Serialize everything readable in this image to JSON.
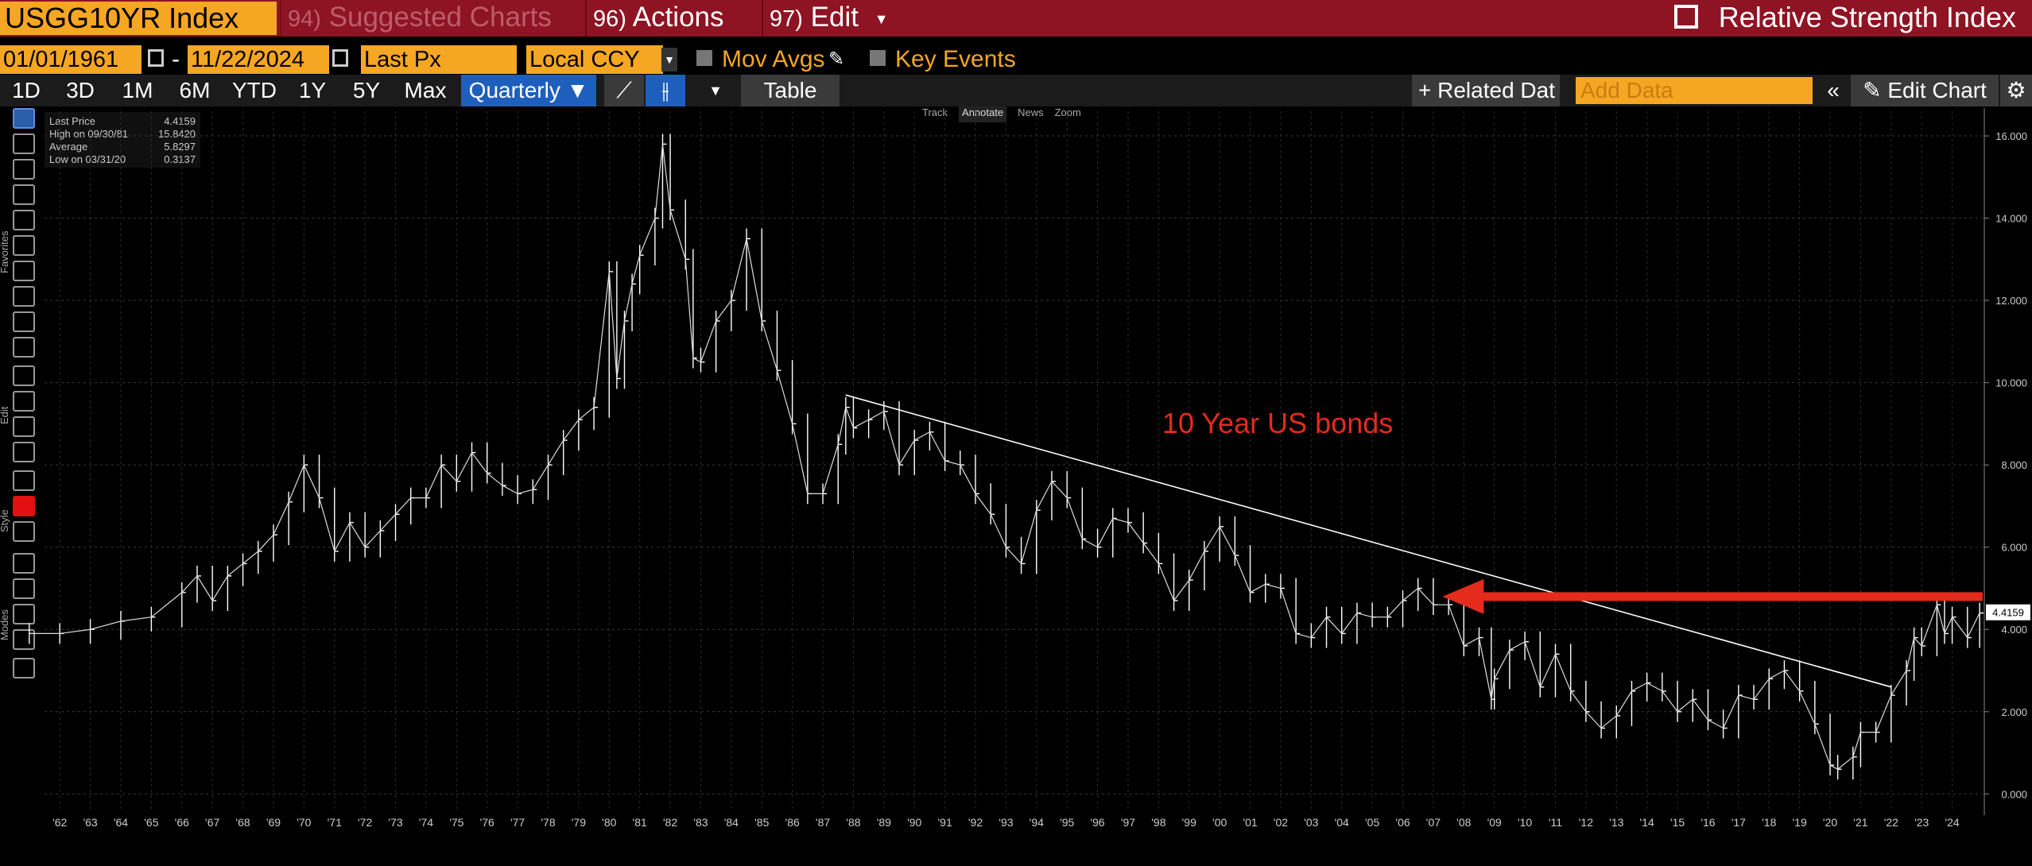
{
  "header": {
    "ticker": "USGG10YR Index",
    "menu_suggested_num": "94)",
    "menu_suggested": "Suggested Charts",
    "menu_actions_num": "96)",
    "menu_actions": "Actions",
    "menu_edit_num": "97)",
    "menu_edit": "Edit",
    "study": "Relative Strength Index"
  },
  "controls": {
    "start_date": "01/01/1961",
    "end_date": "11/22/2024",
    "field": "Last Px",
    "currency": "Local CCY",
    "mov_avgs": "Mov Avgs",
    "key_events": "Key Events"
  },
  "toolbar": {
    "periods": [
      "1D",
      "3D",
      "1M",
      "6M",
      "YTD",
      "1Y",
      "5Y",
      "Max"
    ],
    "frequency": "Quarterly",
    "table": "Table",
    "related_data": "Related Dat",
    "add_data_placeholder": "Add Data",
    "edit_chart": "Edit Chart"
  },
  "sidebar_labels": {
    "favorites": "Favorites",
    "edit": "Edit",
    "style": "Style",
    "modes": "Modes"
  },
  "legend": {
    "last_price_label": "Last Price",
    "last_price": "4.4159",
    "high_label": "High on 09/30/81",
    "high": "15.8420",
    "average_label": "Average",
    "average": "5.8297",
    "low_label": "Low on 03/31/20",
    "low": "0.3137"
  },
  "annotation_bar": {
    "track": "Track",
    "annotate": "Annotate",
    "news": "News",
    "zoom": "Zoom"
  },
  "colors": {
    "topbar": "#8e1423",
    "field": "#f5a623",
    "selected": "#1e5fbd",
    "arrow": "#e42b1c",
    "bars": "#ffffff"
  },
  "chart_data": {
    "type": "line",
    "bar_style": "ohlc",
    "frequency": "quarterly",
    "annotation": "10 Year US bonds",
    "last_value_label": "4.4159",
    "y_ticks": [
      "0.000",
      "2.000",
      "4.000",
      "6.000",
      "8.000",
      "10.000",
      "12.000",
      "14.000",
      "16.000"
    ],
    "ylim": [
      -0.4,
      16.6
    ],
    "x_ticks": [
      "'62",
      "'63",
      "'64",
      "'65",
      "'66",
      "'67",
      "'68",
      "'69",
      "'70",
      "'71",
      "'72",
      "'73",
      "'74",
      "'75",
      "'76",
      "'77",
      "'78",
      "'79",
      "'80",
      "'81",
      "'82",
      "'83",
      "'84",
      "'85",
      "'86",
      "'87",
      "'88",
      "'89",
      "'90",
      "'91",
      "'92",
      "'93",
      "'94",
      "'95",
      "'96",
      "'97",
      "'98",
      "'99",
      "'00",
      "'01",
      "'02",
      "'03",
      "'04",
      "'05",
      "'06",
      "'07",
      "'08",
      "'09",
      "'10",
      "'11",
      "'12",
      "'13",
      "'14",
      "'15",
      "'16",
      "'17",
      "'18",
      "'19",
      "'20",
      "'21",
      "'22",
      "'23",
      "'24"
    ],
    "xlim": [
      1961.5,
      2025.0
    ],
    "grid": true,
    "series": [
      {
        "values": [
          {
            "x": 1961.0,
            "y": 3.9
          },
          {
            "x": 1962.0,
            "y": 3.9
          },
          {
            "x": 1963.0,
            "y": 4.0
          },
          {
            "x": 1964.0,
            "y": 4.2
          },
          {
            "x": 1965.0,
            "y": 4.3
          },
          {
            "x": 1966.0,
            "y": 4.9
          },
          {
            "x": 1966.5,
            "y": 5.3
          },
          {
            "x": 1967.0,
            "y": 4.7
          },
          {
            "x": 1967.5,
            "y": 5.3
          },
          {
            "x": 1968.0,
            "y": 5.6
          },
          {
            "x": 1968.5,
            "y": 5.9
          },
          {
            "x": 1969.0,
            "y": 6.3
          },
          {
            "x": 1969.5,
            "y": 7.1
          },
          {
            "x": 1970.0,
            "y": 8.0
          },
          {
            "x": 1970.5,
            "y": 7.2
          },
          {
            "x": 1971.0,
            "y": 5.9
          },
          {
            "x": 1971.5,
            "y": 6.6
          },
          {
            "x": 1972.0,
            "y": 6.0
          },
          {
            "x": 1972.5,
            "y": 6.4
          },
          {
            "x": 1973.0,
            "y": 6.8
          },
          {
            "x": 1973.5,
            "y": 7.2
          },
          {
            "x": 1974.0,
            "y": 7.2
          },
          {
            "x": 1974.5,
            "y": 8.0
          },
          {
            "x": 1975.0,
            "y": 7.6
          },
          {
            "x": 1975.5,
            "y": 8.3
          },
          {
            "x": 1976.0,
            "y": 7.8
          },
          {
            "x": 1976.5,
            "y": 7.5
          },
          {
            "x": 1977.0,
            "y": 7.3
          },
          {
            "x": 1977.5,
            "y": 7.4
          },
          {
            "x": 1978.0,
            "y": 8.0
          },
          {
            "x": 1978.5,
            "y": 8.6
          },
          {
            "x": 1979.0,
            "y": 9.1
          },
          {
            "x": 1979.5,
            "y": 9.4
          },
          {
            "x": 1980.0,
            "y": 12.7
          },
          {
            "x": 1980.25,
            "y": 10.1
          },
          {
            "x": 1980.5,
            "y": 11.5
          },
          {
            "x": 1980.75,
            "y": 12.4
          },
          {
            "x": 1981.0,
            "y": 13.1
          },
          {
            "x": 1981.5,
            "y": 14.0
          },
          {
            "x": 1981.75,
            "y": 15.8
          },
          {
            "x": 1982.0,
            "y": 14.2
          },
          {
            "x": 1982.5,
            "y": 13.0
          },
          {
            "x": 1982.75,
            "y": 10.6
          },
          {
            "x": 1983.0,
            "y": 10.5
          },
          {
            "x": 1983.5,
            "y": 11.5
          },
          {
            "x": 1984.0,
            "y": 12.0
          },
          {
            "x": 1984.5,
            "y": 13.5
          },
          {
            "x": 1985.0,
            "y": 11.5
          },
          {
            "x": 1985.5,
            "y": 10.3
          },
          {
            "x": 1986.0,
            "y": 9.0
          },
          {
            "x": 1986.5,
            "y": 7.3
          },
          {
            "x": 1987.0,
            "y": 7.3
          },
          {
            "x": 1987.5,
            "y": 8.5
          },
          {
            "x": 1987.75,
            "y": 9.4
          },
          {
            "x": 1988.0,
            "y": 8.9
          },
          {
            "x": 1988.5,
            "y": 9.1
          },
          {
            "x": 1989.0,
            "y": 9.3
          },
          {
            "x": 1989.5,
            "y": 8.0
          },
          {
            "x": 1990.0,
            "y": 8.6
          },
          {
            "x": 1990.5,
            "y": 8.8
          },
          {
            "x": 1991.0,
            "y": 8.1
          },
          {
            "x": 1991.5,
            "y": 8.0
          },
          {
            "x": 1992.0,
            "y": 7.3
          },
          {
            "x": 1992.5,
            "y": 6.8
          },
          {
            "x": 1993.0,
            "y": 6.0
          },
          {
            "x": 1993.5,
            "y": 5.6
          },
          {
            "x": 1994.0,
            "y": 6.9
          },
          {
            "x": 1994.5,
            "y": 7.6
          },
          {
            "x": 1995.0,
            "y": 7.2
          },
          {
            "x": 1995.5,
            "y": 6.2
          },
          {
            "x": 1996.0,
            "y": 6.0
          },
          {
            "x": 1996.5,
            "y": 6.7
          },
          {
            "x": 1997.0,
            "y": 6.6
          },
          {
            "x": 1997.5,
            "y": 6.1
          },
          {
            "x": 1998.0,
            "y": 5.6
          },
          {
            "x": 1998.5,
            "y": 4.7
          },
          {
            "x": 1999.0,
            "y": 5.2
          },
          {
            "x": 1999.5,
            "y": 5.9
          },
          {
            "x": 2000.0,
            "y": 6.5
          },
          {
            "x": 2000.5,
            "y": 5.8
          },
          {
            "x": 2001.0,
            "y": 4.9
          },
          {
            "x": 2001.5,
            "y": 5.1
          },
          {
            "x": 2002.0,
            "y": 5.0
          },
          {
            "x": 2002.5,
            "y": 3.9
          },
          {
            "x": 2003.0,
            "y": 3.8
          },
          {
            "x": 2003.5,
            "y": 4.3
          },
          {
            "x": 2004.0,
            "y": 3.9
          },
          {
            "x": 2004.5,
            "y": 4.4
          },
          {
            "x": 2005.0,
            "y": 4.3
          },
          {
            "x": 2005.5,
            "y": 4.3
          },
          {
            "x": 2006.0,
            "y": 4.7
          },
          {
            "x": 2006.5,
            "y": 5.0
          },
          {
            "x": 2007.0,
            "y": 4.6
          },
          {
            "x": 2007.5,
            "y": 4.6
          },
          {
            "x": 2008.0,
            "y": 3.6
          },
          {
            "x": 2008.5,
            "y": 3.8
          },
          {
            "x": 2008.9,
            "y": 2.3
          },
          {
            "x": 2009.0,
            "y": 2.8
          },
          {
            "x": 2009.5,
            "y": 3.5
          },
          {
            "x": 2010.0,
            "y": 3.7
          },
          {
            "x": 2010.5,
            "y": 2.6
          },
          {
            "x": 2011.0,
            "y": 3.4
          },
          {
            "x": 2011.5,
            "y": 2.5
          },
          {
            "x": 2012.0,
            "y": 2.0
          },
          {
            "x": 2012.5,
            "y": 1.6
          },
          {
            "x": 2013.0,
            "y": 1.9
          },
          {
            "x": 2013.5,
            "y": 2.5
          },
          {
            "x": 2014.0,
            "y": 2.7
          },
          {
            "x": 2014.5,
            "y": 2.5
          },
          {
            "x": 2015.0,
            "y": 2.0
          },
          {
            "x": 2015.5,
            "y": 2.3
          },
          {
            "x": 2016.0,
            "y": 1.8
          },
          {
            "x": 2016.5,
            "y": 1.6
          },
          {
            "x": 2017.0,
            "y": 2.4
          },
          {
            "x": 2017.5,
            "y": 2.3
          },
          {
            "x": 2018.0,
            "y": 2.8
          },
          {
            "x": 2018.5,
            "y": 3.0
          },
          {
            "x": 2019.0,
            "y": 2.5
          },
          {
            "x": 2019.5,
            "y": 1.7
          },
          {
            "x": 2020.0,
            "y": 0.7
          },
          {
            "x": 2020.25,
            "y": 0.6
          },
          {
            "x": 2020.75,
            "y": 0.9
          },
          {
            "x": 2021.0,
            "y": 1.5
          },
          {
            "x": 2021.5,
            "y": 1.5
          },
          {
            "x": 2022.0,
            "y": 2.4
          },
          {
            "x": 2022.5,
            "y": 3.0
          },
          {
            "x": 2022.75,
            "y": 3.8
          },
          {
            "x": 2023.0,
            "y": 3.6
          },
          {
            "x": 2023.5,
            "y": 4.6
          },
          {
            "x": 2023.75,
            "y": 3.9
          },
          {
            "x": 2024.0,
            "y": 4.3
          },
          {
            "x": 2024.5,
            "y": 3.8
          },
          {
            "x": 2024.9,
            "y": 4.4
          }
        ]
      }
    ],
    "trendline": {
      "start": {
        "x": 1987.75,
        "y": 9.7
      },
      "end": {
        "x": 2022.0,
        "y": 2.6
      }
    },
    "arrow": {
      "from": {
        "x": 2025.0,
        "y": 4.8
      },
      "to": {
        "x": 2007.3,
        "y": 4.8
      }
    }
  }
}
